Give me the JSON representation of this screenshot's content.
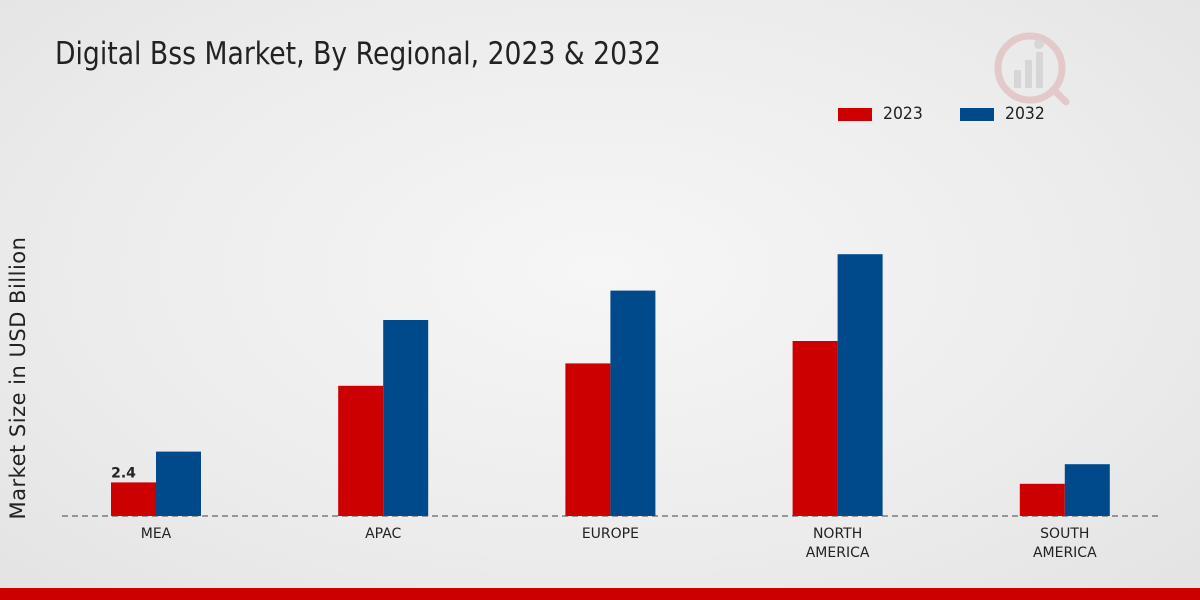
{
  "chart_data": {
    "type": "bar",
    "title": "Digital Bss Market, By Regional, 2023 & 2032",
    "ylabel": "Market Size in USD Billion",
    "xlabel": "",
    "categories": [
      "MEA",
      "APAC",
      "EUROPE",
      "NORTH AMERICA",
      "SOUTH AMERICA"
    ],
    "category_labels": [
      [
        "MEA"
      ],
      [
        "APAC"
      ],
      [
        "EUROPE"
      ],
      [
        "NORTH",
        "AMERICA"
      ],
      [
        "SOUTH",
        "AMERICA"
      ]
    ],
    "series": [
      {
        "name": "2023",
        "color": "#cc0000",
        "values": [
          2.4,
          9.3,
          10.9,
          12.5,
          2.3
        ]
      },
      {
        "name": "2032",
        "color": "#004a8c",
        "values": [
          4.6,
          14.0,
          16.1,
          18.7,
          3.7
        ]
      }
    ],
    "data_labels": [
      {
        "series": 0,
        "index": 0,
        "text": "2.4"
      }
    ],
    "ylim": [
      0,
      25
    ],
    "grid": false,
    "legend_position": "top-right"
  }
}
